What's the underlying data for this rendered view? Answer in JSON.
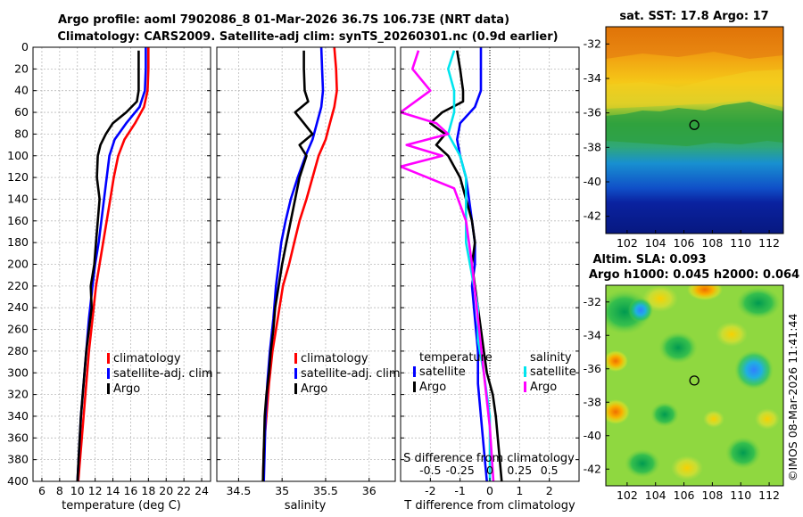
{
  "header": {
    "title_line1": "Argo profile: aoml 7902086_8 01-Mar-2026 36.7S 106.73E (NRT data)",
    "title_line2": "Climatology: CARS2009. Satellite-adj clim: synTS_20260301.nc (0.9d earlier)"
  },
  "colors": {
    "climatology": "#ff0000",
    "satellite": "#0000ff",
    "argo": "#000000",
    "sat_salinity": "#00e5ee",
    "argo_salinity": "#ff00ff"
  },
  "depth_ticks": [
    0,
    20,
    40,
    60,
    80,
    100,
    120,
    140,
    160,
    180,
    200,
    220,
    240,
    260,
    280,
    300,
    320,
    340,
    360,
    380,
    400
  ],
  "chart_data": [
    {
      "type": "line",
      "id": "temperature",
      "xlabel": "temperature (deg C)",
      "ylabel": "depth",
      "xlim": [
        5,
        25
      ],
      "ylim": [
        400,
        0
      ],
      "xticks": [
        6,
        8,
        10,
        12,
        14,
        16,
        18,
        20,
        22,
        24
      ],
      "legend": [
        "climatology",
        "satellite-adj. clim",
        "Argo"
      ],
      "series": [
        {
          "name": "climatology",
          "color": "#ff0000",
          "x": [
            18.0,
            18.0,
            17.9,
            17.5,
            16.5,
            15.3,
            14.6,
            14.1,
            13.7,
            13.3,
            12.9,
            12.5,
            12.1,
            11.7,
            11.3,
            11.0,
            10.7,
            10.4,
            10.1
          ],
          "y": [
            0,
            20,
            40,
            55,
            70,
            85,
            100,
            120,
            140,
            160,
            180,
            200,
            220,
            250,
            280,
            310,
            340,
            370,
            400
          ]
        },
        {
          "name": "satellite-adj. clim",
          "color": "#0000ff",
          "x": [
            17.7,
            17.7,
            17.6,
            17.0,
            15.5,
            14.2,
            13.6,
            13.3,
            13.0,
            12.7,
            12.4,
            12.0,
            11.7,
            11.3,
            11.0,
            10.7,
            10.4,
            10.2,
            10.0
          ],
          "y": [
            0,
            20,
            40,
            55,
            70,
            85,
            100,
            120,
            140,
            160,
            180,
            200,
            220,
            250,
            280,
            310,
            340,
            370,
            400
          ]
        },
        {
          "name": "Argo",
          "color": "#000000",
          "x": [
            16.9,
            16.9,
            16.9,
            16.7,
            15.5,
            14.0,
            13.2,
            12.6,
            12.3,
            12.2,
            12.5,
            12.3,
            12.1,
            11.9,
            11.5,
            11.6,
            11.3,
            11.0,
            10.8,
            10.6,
            10.4,
            10.2,
            10.0
          ],
          "y": [
            3,
            20,
            40,
            50,
            60,
            70,
            80,
            90,
            100,
            120,
            140,
            160,
            180,
            200,
            220,
            240,
            260,
            280,
            300,
            320,
            340,
            370,
            400
          ]
        }
      ]
    },
    {
      "type": "line",
      "id": "salinity",
      "xlabel": "salinity",
      "ylabel": "depth",
      "xlim": [
        34.25,
        36.3
      ],
      "ylim": [
        400,
        0
      ],
      "xticks": [
        34.5,
        35,
        35.5,
        36
      ],
      "legend": [
        "climatology",
        "satellite-adj. clim",
        "Argo"
      ],
      "series": [
        {
          "name": "climatology",
          "color": "#ff0000",
          "x": [
            35.6,
            35.62,
            35.63,
            35.6,
            35.55,
            35.5,
            35.42,
            35.35,
            35.28,
            35.2,
            35.14,
            35.08,
            35.01,
            34.95,
            34.89,
            34.85,
            34.82,
            34.79,
            34.78
          ],
          "y": [
            0,
            20,
            40,
            55,
            70,
            85,
            100,
            120,
            140,
            160,
            180,
            200,
            220,
            250,
            280,
            310,
            340,
            370,
            400
          ]
        },
        {
          "name": "satellite-adj. clim",
          "color": "#0000ff",
          "x": [
            35.45,
            35.46,
            35.47,
            35.45,
            35.4,
            35.35,
            35.27,
            35.18,
            35.1,
            35.04,
            34.99,
            34.96,
            34.93,
            34.9,
            34.86,
            34.83,
            34.81,
            34.8,
            34.79
          ],
          "y": [
            0,
            20,
            40,
            55,
            70,
            85,
            100,
            120,
            140,
            160,
            180,
            200,
            220,
            250,
            280,
            310,
            340,
            370,
            400
          ]
        },
        {
          "name": "Argo",
          "color": "#000000",
          "x": [
            35.25,
            35.25,
            35.26,
            35.3,
            35.15,
            35.25,
            35.35,
            35.2,
            35.28,
            35.2,
            35.15,
            35.1,
            35.05,
            35.0,
            34.96,
            34.92,
            34.9,
            34.87,
            34.85,
            34.82,
            34.8,
            34.79,
            34.78
          ],
          "y": [
            3,
            20,
            40,
            50,
            60,
            70,
            80,
            90,
            100,
            120,
            140,
            160,
            180,
            200,
            220,
            240,
            260,
            280,
            300,
            320,
            340,
            370,
            400
          ]
        }
      ]
    },
    {
      "type": "line",
      "id": "differences",
      "xlabel": "T difference from climatology",
      "x2label": "S difference from climatology",
      "xlim": [
        -3,
        3
      ],
      "ylim": [
        400,
        0
      ],
      "xticks": [
        -2,
        -1,
        0,
        1,
        2
      ],
      "x2ticks": [
        -0.5,
        -0.25,
        0,
        0.25,
        0.5
      ],
      "legend_temperature_title": "temperature",
      "legend_salinity_title": "salinity",
      "legend_temperature": [
        "satellite",
        "Argo"
      ],
      "legend_salinity": [
        "satellite",
        "Argo"
      ],
      "series": [
        {
          "name": "temperature satellite",
          "color": "#0000ff",
          "x": [
            -0.3,
            -0.3,
            -0.3,
            -0.5,
            -1.0,
            -1.1,
            -1.0,
            -0.8,
            -0.7,
            -0.6,
            -0.5,
            -0.5,
            -0.6,
            -0.5,
            -0.4,
            -0.4,
            -0.3,
            -0.2,
            -0.1
          ],
          "y": [
            0,
            20,
            40,
            55,
            70,
            85,
            100,
            120,
            140,
            160,
            180,
            200,
            220,
            250,
            280,
            310,
            340,
            370,
            400
          ]
        },
        {
          "name": "temperature Argo",
          "color": "#000000",
          "x": [
            -1.1,
            -1.0,
            -0.9,
            -0.9,
            -1.6,
            -2.0,
            -1.5,
            -1.8,
            -1.4,
            -1.0,
            -0.8,
            -0.6,
            -0.5,
            -0.6,
            -0.5,
            -0.4,
            -0.3,
            -0.2,
            -0.1,
            0.1,
            0.2,
            0.3,
            0.4
          ],
          "y": [
            3,
            20,
            40,
            50,
            60,
            70,
            80,
            90,
            100,
            120,
            140,
            160,
            180,
            200,
            220,
            240,
            260,
            280,
            300,
            320,
            340,
            370,
            400
          ]
        },
        {
          "name": "salinity satellite",
          "color": "#00e5ee",
          "x": [
            -0.3,
            -0.35,
            -0.3,
            -0.3,
            -0.35,
            -0.25,
            -0.2,
            -0.2,
            -0.2,
            -0.15,
            -0.1,
            -0.1,
            -0.05,
            0,
            0
          ],
          "y": [
            3,
            20,
            40,
            60,
            80,
            100,
            120,
            150,
            180,
            210,
            240,
            270,
            300,
            340,
            400
          ]
        },
        {
          "name": "salinity Argo",
          "color": "#ff00ff",
          "x": [
            -0.6,
            -0.65,
            -0.5,
            -0.75,
            -0.45,
            -0.35,
            -0.7,
            -0.4,
            -0.75,
            -0.3,
            -0.2,
            -0.15,
            -0.1,
            -0.05,
            0,
            0.03
          ],
          "y": [
            3,
            20,
            40,
            60,
            70,
            80,
            90,
            100,
            110,
            130,
            160,
            200,
            250,
            300,
            350,
            400
          ]
        }
      ]
    },
    {
      "type": "heatmap",
      "id": "sst",
      "title": "sat. SST: 17.8 Argo: 17",
      "xlim": [
        100.5,
        113
      ],
      "ylim": [
        -43,
        -31
      ],
      "xticks": [
        102,
        104,
        106,
        108,
        110,
        112
      ],
      "yticks": [
        -32,
        -34,
        -36,
        -38,
        -40,
        -42
      ],
      "argo_position": {
        "lon": 106.73,
        "lat": -36.7
      }
    },
    {
      "type": "heatmap",
      "id": "sla",
      "title_line1": "Altim. SLA: 0.093",
      "title_line2": "Argo h1000: 0.045 h2000: 0.064",
      "xlim": [
        100.5,
        113
      ],
      "ylim": [
        -43,
        -31
      ],
      "xticks": [
        102,
        104,
        106,
        108,
        110,
        112
      ],
      "yticks": [
        -32,
        -34,
        -36,
        -38,
        -40,
        -42
      ],
      "argo_position": {
        "lon": 106.73,
        "lat": -36.7
      }
    }
  ],
  "footer": {
    "stamp": "©IMOS 08-Mar-2026 11:41:44"
  }
}
